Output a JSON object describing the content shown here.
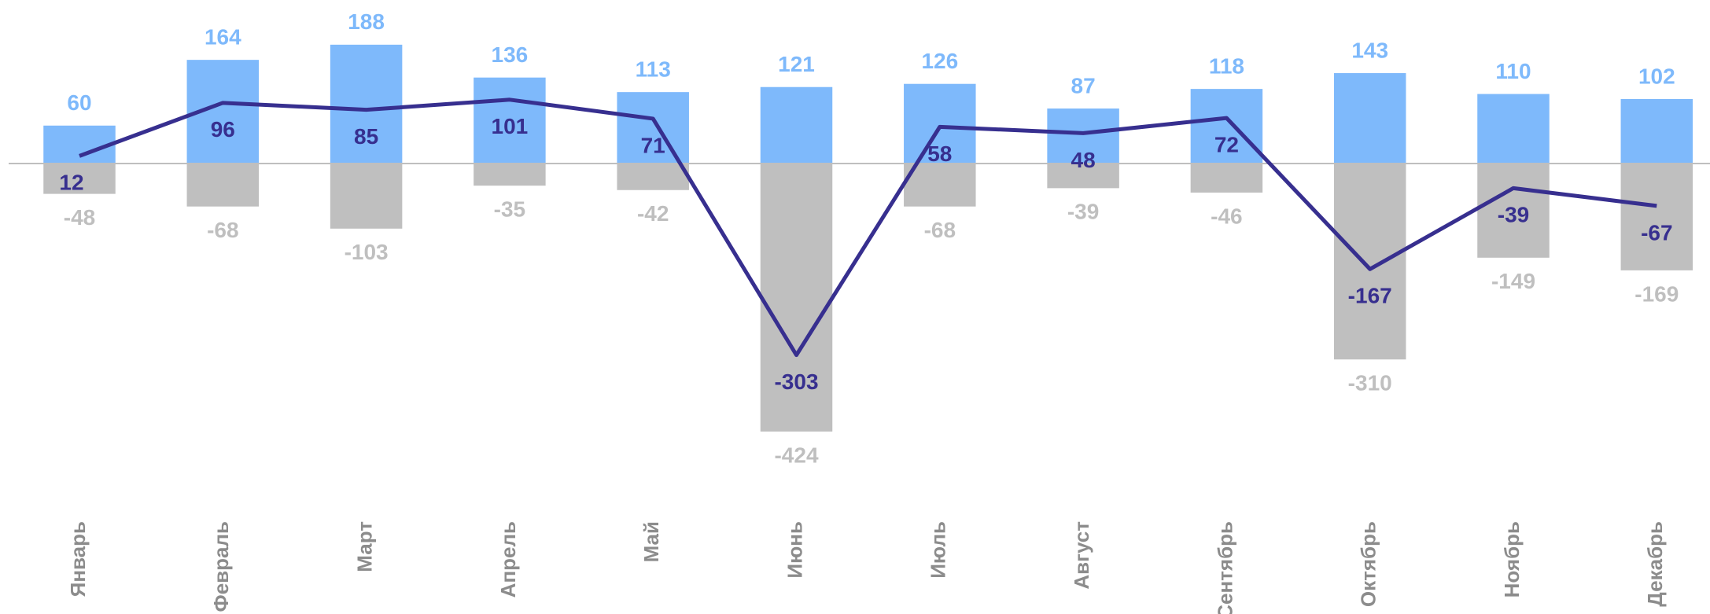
{
  "chart_data": {
    "type": "bar-line",
    "categories": [
      "Январь",
      "Февраль",
      "Март",
      "Апрель",
      "Май",
      "Июнь",
      "Июль",
      "Август",
      "Сентябрь",
      "Октябрь",
      "Ноябрь",
      "Декабрь"
    ],
    "series": [
      {
        "type": "bar",
        "color": "#7eb9fb",
        "values": [
          60,
          164,
          188,
          136,
          113,
          121,
          126,
          87,
          118,
          143,
          110,
          102
        ]
      },
      {
        "type": "bar",
        "color": "#bfbfbf",
        "values": [
          -48,
          -68,
          -103,
          -35,
          -42,
          -424,
          -68,
          -39,
          -46,
          -310,
          -149,
          -169
        ]
      },
      {
        "type": "line",
        "color": "#372f8f",
        "values": [
          12,
          96,
          85,
          101,
          71,
          -303,
          58,
          48,
          72,
          -167,
          -39,
          -67
        ]
      }
    ]
  }
}
